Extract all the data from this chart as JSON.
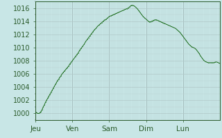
{
  "background_color": "#c8e6e6",
  "plot_bg_color": "#c8e6e6",
  "line_color": "#1a6b1a",
  "grid_color_major_x": "#a8c0c0",
  "grid_color_minor_x": "#b8d4d4",
  "grid_color_major_y": "#b0c8c8",
  "grid_color_minor_y": "#bcd0d0",
  "xlim": [
    0,
    5
  ],
  "ylim": [
    999,
    1017
  ],
  "yticks": [
    1000,
    1002,
    1004,
    1006,
    1008,
    1010,
    1012,
    1014,
    1016
  ],
  "xtick_labels": [
    "Jeu",
    "Ven",
    "Sam",
    "Dim",
    "Lun"
  ],
  "xtick_positions": [
    0,
    1,
    2,
    3,
    4
  ],
  "tick_color": "#2a5a2a",
  "tick_fontsize": 7.5,
  "ytick_fontsize": 7.0,
  "minor_x_spacing": 0.04167,
  "minor_y_spacing": 1,
  "pressure_data": [
    [
      0.0,
      1000.3
    ],
    [
      0.03,
      1000.1
    ],
    [
      0.06,
      1000.0
    ],
    [
      0.09,
      1000.0
    ],
    [
      0.12,
      1000.1
    ],
    [
      0.15,
      1000.3
    ],
    [
      0.18,
      1000.6
    ],
    [
      0.21,
      1001.0
    ],
    [
      0.24,
      1001.3
    ],
    [
      0.27,
      1001.7
    ],
    [
      0.3,
      1002.0
    ],
    [
      0.33,
      1002.3
    ],
    [
      0.36,
      1002.6
    ],
    [
      0.39,
      1002.9
    ],
    [
      0.42,
      1003.2
    ],
    [
      0.45,
      1003.5
    ],
    [
      0.48,
      1003.8
    ],
    [
      0.51,
      1004.1
    ],
    [
      0.54,
      1004.4
    ],
    [
      0.57,
      1004.7
    ],
    [
      0.6,
      1005.0
    ],
    [
      0.63,
      1005.2
    ],
    [
      0.66,
      1005.5
    ],
    [
      0.69,
      1005.7
    ],
    [
      0.72,
      1006.0
    ],
    [
      0.75,
      1006.2
    ],
    [
      0.78,
      1006.4
    ],
    [
      0.81,
      1006.6
    ],
    [
      0.84,
      1006.8
    ],
    [
      0.87,
      1007.0
    ],
    [
      0.9,
      1007.2
    ],
    [
      0.93,
      1007.5
    ],
    [
      0.96,
      1007.7
    ],
    [
      1.0,
      1008.0
    ],
    [
      1.04,
      1008.3
    ],
    [
      1.08,
      1008.6
    ],
    [
      1.12,
      1008.9
    ],
    [
      1.16,
      1009.2
    ],
    [
      1.2,
      1009.6
    ],
    [
      1.24,
      1009.9
    ],
    [
      1.28,
      1010.2
    ],
    [
      1.32,
      1010.5
    ],
    [
      1.36,
      1010.9
    ],
    [
      1.4,
      1011.2
    ],
    [
      1.44,
      1011.5
    ],
    [
      1.48,
      1011.8
    ],
    [
      1.52,
      1012.1
    ],
    [
      1.56,
      1012.4
    ],
    [
      1.6,
      1012.7
    ],
    [
      1.64,
      1012.9
    ],
    [
      1.68,
      1013.2
    ],
    [
      1.72,
      1013.4
    ],
    [
      1.76,
      1013.6
    ],
    [
      1.8,
      1013.8
    ],
    [
      1.84,
      1014.0
    ],
    [
      1.88,
      1014.2
    ],
    [
      1.92,
      1014.3
    ],
    [
      1.96,
      1014.5
    ],
    [
      2.0,
      1014.7
    ],
    [
      2.04,
      1014.8
    ],
    [
      2.08,
      1014.9
    ],
    [
      2.12,
      1015.0
    ],
    [
      2.16,
      1015.1
    ],
    [
      2.2,
      1015.2
    ],
    [
      2.24,
      1015.3
    ],
    [
      2.28,
      1015.4
    ],
    [
      2.32,
      1015.5
    ],
    [
      2.36,
      1015.6
    ],
    [
      2.4,
      1015.7
    ],
    [
      2.44,
      1015.8
    ],
    [
      2.48,
      1015.9
    ],
    [
      2.52,
      1016.0
    ],
    [
      2.56,
      1016.2
    ],
    [
      2.6,
      1016.4
    ],
    [
      2.64,
      1016.4
    ],
    [
      2.68,
      1016.3
    ],
    [
      2.72,
      1016.1
    ],
    [
      2.76,
      1015.9
    ],
    [
      2.8,
      1015.6
    ],
    [
      2.84,
      1015.3
    ],
    [
      2.88,
      1015.0
    ],
    [
      2.92,
      1014.7
    ],
    [
      2.96,
      1014.5
    ],
    [
      3.0,
      1014.3
    ],
    [
      3.04,
      1014.1
    ],
    [
      3.08,
      1013.9
    ],
    [
      3.12,
      1013.9
    ],
    [
      3.16,
      1014.0
    ],
    [
      3.2,
      1014.1
    ],
    [
      3.24,
      1014.2
    ],
    [
      3.28,
      1014.2
    ],
    [
      3.32,
      1014.1
    ],
    [
      3.36,
      1014.0
    ],
    [
      3.4,
      1013.9
    ],
    [
      3.44,
      1013.8
    ],
    [
      3.48,
      1013.7
    ],
    [
      3.52,
      1013.6
    ],
    [
      3.56,
      1013.5
    ],
    [
      3.6,
      1013.4
    ],
    [
      3.64,
      1013.3
    ],
    [
      3.68,
      1013.2
    ],
    [
      3.72,
      1013.1
    ],
    [
      3.76,
      1013.0
    ],
    [
      3.8,
      1012.9
    ],
    [
      3.84,
      1012.7
    ],
    [
      3.88,
      1012.5
    ],
    [
      3.92,
      1012.3
    ],
    [
      3.96,
      1012.0
    ],
    [
      4.0,
      1011.7
    ],
    [
      4.04,
      1011.4
    ],
    [
      4.08,
      1011.1
    ],
    [
      4.12,
      1010.8
    ],
    [
      4.16,
      1010.5
    ],
    [
      4.2,
      1010.3
    ],
    [
      4.24,
      1010.1
    ],
    [
      4.28,
      1010.0
    ],
    [
      4.32,
      1009.9
    ],
    [
      4.36,
      1009.7
    ],
    [
      4.4,
      1009.4
    ],
    [
      4.44,
      1009.1
    ],
    [
      4.48,
      1008.7
    ],
    [
      4.52,
      1008.4
    ],
    [
      4.56,
      1008.1
    ],
    [
      4.6,
      1007.9
    ],
    [
      4.64,
      1007.8
    ],
    [
      4.68,
      1007.7
    ],
    [
      4.72,
      1007.7
    ],
    [
      4.76,
      1007.7
    ],
    [
      4.8,
      1007.7
    ],
    [
      4.84,
      1007.7
    ],
    [
      4.88,
      1007.8
    ],
    [
      4.92,
      1007.8
    ],
    [
      4.96,
      1007.7
    ],
    [
      5.0,
      1007.6
    ]
  ]
}
